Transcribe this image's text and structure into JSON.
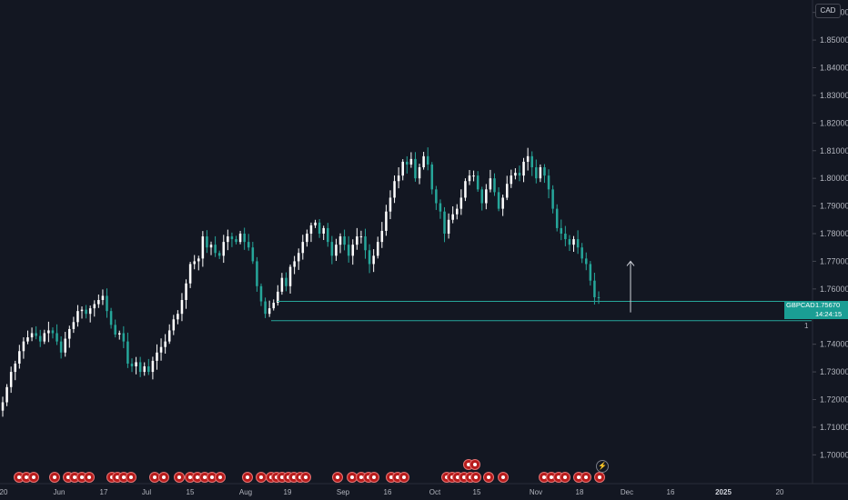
{
  "currency": "CAD",
  "symbol": "GBPCAD",
  "last_price": "1.75670",
  "countdown": "14:24:15",
  "level_label": "1",
  "colors": {
    "background": "#131722",
    "up": "#ffffff",
    "down": "#26a69a",
    "line": "#26a69a",
    "axis_text": "#b2b5be",
    "event_marker": "#e53935"
  },
  "chart_data": {
    "type": "candlestick",
    "title": "",
    "x_tick_labels": [
      "20",
      "Jun",
      "17",
      "Jul",
      "15",
      "Aug",
      "19",
      "Sep",
      "16",
      "Oct",
      "15",
      "Nov",
      "18",
      "Dec",
      "16",
      "2025",
      "20"
    ],
    "y_tick_labels": [
      "1.86000",
      "1.85000",
      "1.84000",
      "1.83000",
      "1.82000",
      "1.81000",
      "1.80000",
      "1.79000",
      "1.78000",
      "1.77000",
      "1.76000",
      "1.75000",
      "1.74000",
      "1.73000",
      "1.72000",
      "1.71000",
      "1.70000"
    ],
    "ylim": [
      1.6955,
      1.8645
    ],
    "grid": false,
    "horizontal_levels": [
      1.7555,
      1.7485
    ],
    "arrow": {
      "from": 1.7515,
      "to": 1.77,
      "direction": "up"
    },
    "closes": [
      1.719,
      1.7245,
      1.73,
      1.733,
      1.7375,
      1.741,
      1.7425,
      1.744,
      1.743,
      1.741,
      1.744,
      1.745,
      1.744,
      1.741,
      1.737,
      1.742,
      1.7455,
      1.748,
      1.752,
      1.7525,
      1.751,
      1.753,
      1.7545,
      1.756,
      1.7575,
      1.752,
      1.747,
      1.7435,
      1.744,
      1.741,
      1.733,
      1.732,
      1.7335,
      1.73,
      1.732,
      1.73,
      1.734,
      1.737,
      1.739,
      1.741,
      1.745,
      1.749,
      1.751,
      1.756,
      1.762,
      1.769,
      1.77,
      1.771,
      1.779,
      1.775,
      1.776,
      1.773,
      1.772,
      1.777,
      1.779,
      1.778,
      1.777,
      1.78,
      1.777,
      1.775,
      1.77,
      1.761,
      1.7555,
      1.751,
      1.753,
      1.755,
      1.759,
      1.764,
      1.761,
      1.768,
      1.77,
      1.773,
      1.777,
      1.78,
      1.783,
      1.784,
      1.78,
      1.782,
      1.777,
      1.772,
      1.776,
      1.779,
      1.776,
      1.772,
      1.776,
      1.779,
      1.779,
      1.774,
      1.769,
      1.772,
      1.777,
      1.781,
      1.788,
      1.793,
      1.799,
      1.801,
      1.806,
      1.805,
      1.807,
      1.8,
      1.804,
      1.808,
      1.805,
      1.796,
      1.791,
      1.788,
      1.78,
      1.785,
      1.787,
      1.789,
      1.793,
      1.799,
      1.801,
      1.801,
      1.796,
      1.791,
      1.796,
      1.8,
      1.795,
      1.789,
      1.793,
      1.798,
      1.801,
      1.802,
      1.801,
      1.806,
      1.808,
      1.804,
      1.8,
      1.804,
      1.801,
      1.796,
      1.789,
      1.782,
      1.78,
      1.778,
      1.776,
      1.778,
      1.775,
      1.771,
      1.769,
      1.763,
      1.757,
      1.7567
    ],
    "event_markers_count": 52
  }
}
